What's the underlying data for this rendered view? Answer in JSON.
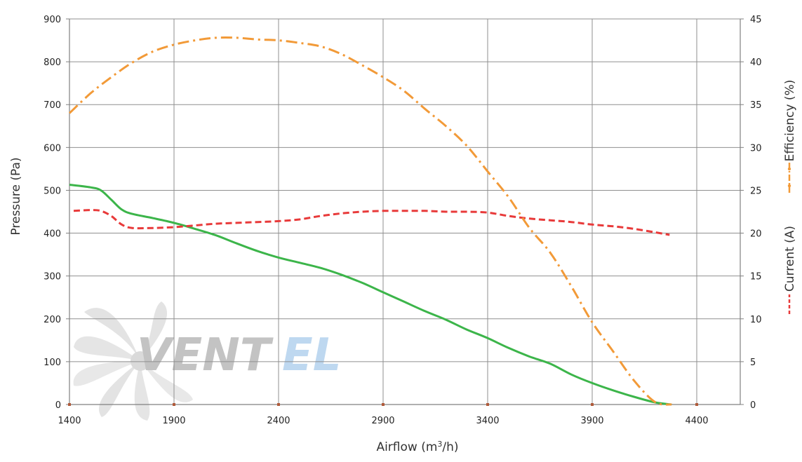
{
  "chart_data": {
    "type": "line",
    "xlabel": "Airflow (m",
    "xlabel_sup": "3",
    "xlabel_end": "/h)",
    "ylabel": "Pressure (Pa)",
    "y2label_top": "Efficiency (%)",
    "y2label_bottom": "Current (A)",
    "xlim": [
      1400,
      4400
    ],
    "xticks": [
      1400,
      1900,
      2400,
      2900,
      3400,
      3900,
      4400
    ],
    "xtick_labels": [
      "1400",
      "1900",
      "2400",
      "2900",
      "3400",
      "3900",
      "4400"
    ],
    "ylim": [
      0,
      900
    ],
    "yticks": [
      0,
      100,
      200,
      300,
      400,
      500,
      600,
      700,
      800,
      900
    ],
    "ytick_labels": [
      "0",
      "100",
      "200",
      "300",
      "400",
      "500",
      "600",
      "700",
      "800",
      "900"
    ],
    "y2lim": [
      0,
      45
    ],
    "y2ticks": [
      0,
      5,
      10,
      15,
      20,
      25,
      30,
      35,
      40,
      45
    ],
    "y2tick_labels": [
      "0",
      "5",
      "10",
      "15",
      "20",
      "25",
      "30",
      "35",
      "40",
      "45"
    ],
    "grid": true,
    "series": [
      {
        "key": "pressure",
        "axis": "left",
        "color": "#3cb54a",
        "style": "solid",
        "x": [
          1400,
          1500,
          1550,
          1600,
          1650,
          1700,
          1800,
          1900,
          2000,
          2100,
          2200,
          2300,
          2400,
          2500,
          2600,
          2700,
          2800,
          2900,
          3000,
          3100,
          3200,
          3300,
          3400,
          3500,
          3600,
          3700,
          3800,
          3900,
          4000,
          4100,
          4200,
          4280
        ],
        "y": [
          513,
          507,
          500,
          478,
          455,
          445,
          435,
          424,
          410,
          395,
          376,
          358,
          343,
          331,
          319,
          303,
          284,
          262,
          240,
          218,
          198,
          175,
          155,
          132,
          112,
          95,
          70,
          50,
          33,
          18,
          5,
          0
        ]
      },
      {
        "key": "current",
        "name": "Current (A)",
        "axis": "right",
        "color": "#e83a3a",
        "style": "dashed",
        "x": [
          1420,
          1500,
          1550,
          1600,
          1650,
          1700,
          1800,
          1900,
          2000,
          2100,
          2200,
          2300,
          2400,
          2500,
          2600,
          2700,
          2800,
          2900,
          3000,
          3100,
          3200,
          3300,
          3400,
          3500,
          3600,
          3700,
          3800,
          3900,
          4000,
          4100,
          4200,
          4270
        ],
        "y": [
          22.6,
          22.7,
          22.6,
          22.0,
          21.0,
          20.6,
          20.6,
          20.7,
          20.9,
          21.1,
          21.2,
          21.3,
          21.4,
          21.6,
          22.0,
          22.3,
          22.5,
          22.6,
          22.6,
          22.6,
          22.5,
          22.5,
          22.4,
          22.0,
          21.7,
          21.5,
          21.3,
          21.0,
          20.8,
          20.5,
          20.1,
          19.8
        ]
      },
      {
        "key": "efficiency",
        "name": "Efficiency (%)",
        "axis": "right",
        "color": "#f29a38",
        "style": "dashdot",
        "x": [
          1400,
          1500,
          1600,
          1700,
          1800,
          1900,
          2000,
          2100,
          2200,
          2300,
          2400,
          2500,
          2600,
          2700,
          2800,
          2900,
          3000,
          3100,
          3200,
          3300,
          3400,
          3500,
          3600,
          3700,
          3800,
          3900,
          4000,
          4100,
          4200,
          4280
        ],
        "y": [
          34.0,
          36.3,
          38.2,
          39.9,
          41.2,
          42.0,
          42.5,
          42.8,
          42.8,
          42.6,
          42.5,
          42.2,
          41.8,
          40.9,
          39.6,
          38.2,
          36.6,
          34.5,
          32.5,
          30.2,
          27.2,
          24.2,
          20.6,
          17.7,
          13.8,
          9.6,
          6.2,
          2.8,
          0.3,
          0.0
        ]
      }
    ]
  },
  "watermark": {
    "brand_text_left": "VENT",
    "brand_text_right": "EL",
    "colors": {
      "fan": "#dddddd",
      "text_left": "#bdbdbd",
      "text_right": "#b8d4ef"
    }
  },
  "colors": {
    "grid": "#8f8f8f",
    "axis": "#808080",
    "tick_mark": "#b05a3a"
  }
}
